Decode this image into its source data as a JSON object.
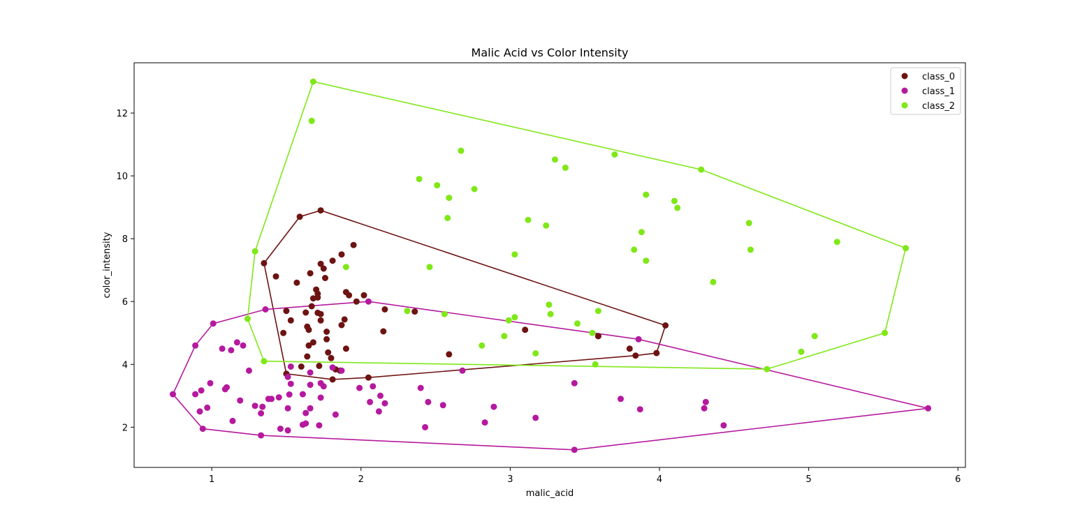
{
  "chart_data": {
    "type": "scatter",
    "title": "Malic Acid vs Color Intensity",
    "xlabel": "malic_acid",
    "ylabel": "color_intensity",
    "xlim": [
      0.48,
      6.05
    ],
    "ylim": [
      0.72,
      13.6
    ],
    "xticks": [
      1,
      2,
      3,
      4,
      5,
      6
    ],
    "yticks": [
      2,
      4,
      6,
      8,
      10,
      12
    ],
    "grid": false,
    "legend_position": "top-right",
    "series": [
      {
        "name": "class_0",
        "color": "#6d1312",
        "points": [
          [
            1.71,
            5.64
          ],
          [
            1.78,
            4.38
          ],
          [
            2.36,
            5.68
          ],
          [
            1.95,
            7.8
          ],
          [
            2.59,
            4.32
          ],
          [
            1.76,
            6.75
          ],
          [
            1.87,
            5.25
          ],
          [
            2.15,
            5.05
          ],
          [
            1.64,
            5.2
          ],
          [
            1.35,
            7.22
          ],
          [
            2.16,
            5.75
          ],
          [
            1.48,
            5.0
          ],
          [
            1.73,
            5.6
          ],
          [
            1.73,
            7.2
          ],
          [
            1.87,
            7.5
          ],
          [
            1.81,
            7.3
          ],
          [
            1.92,
            6.2
          ],
          [
            1.57,
            6.6
          ],
          [
            1.59,
            8.7
          ],
          [
            3.1,
            5.1
          ],
          [
            1.63,
            5.65
          ],
          [
            3.8,
            4.5
          ],
          [
            1.86,
            3.8
          ],
          [
            1.6,
            3.93
          ],
          [
            1.81,
            3.52
          ],
          [
            2.05,
            3.58
          ],
          [
            1.77,
            4.8
          ],
          [
            1.72,
            3.95
          ],
          [
            1.9,
            4.5
          ],
          [
            1.68,
            4.7
          ],
          [
            1.5,
            5.7
          ],
          [
            1.66,
            6.9
          ],
          [
            1.83,
            3.84
          ],
          [
            1.53,
            5.4
          ],
          [
            1.8,
            4.2
          ],
          [
            1.65,
            5.1
          ],
          [
            1.5,
            3.7
          ],
          [
            3.59,
            4.9
          ],
          [
            1.71,
            6.13
          ],
          [
            3.84,
            4.28
          ],
          [
            1.89,
            5.43
          ],
          [
            3.98,
            4.36
          ],
          [
            1.77,
            5.04
          ],
          [
            4.04,
            5.24
          ],
          [
            3.59,
            4.9
          ],
          [
            1.68,
            6.1
          ],
          [
            2.02,
            6.2
          ],
          [
            1.73,
            8.9
          ],
          [
            1.75,
            7.05
          ],
          [
            1.9,
            6.3
          ],
          [
            1.67,
            5.85
          ],
          [
            1.73,
            5.4
          ],
          [
            1.7,
            6.38
          ],
          [
            1.97,
            6.0
          ],
          [
            1.43,
            6.8
          ],
          [
            1.64,
            4.25
          ],
          [
            1.65,
            4.6
          ],
          [
            1.71,
            6.25
          ]
        ]
      },
      {
        "name": "class_1",
        "color": "#b5199e",
        "points": [
          [
            0.94,
            1.95
          ],
          [
            1.1,
            3.27
          ],
          [
            1.36,
            5.75
          ],
          [
            1.25,
            3.8
          ],
          [
            1.13,
            4.45
          ],
          [
            0.99,
            3.4
          ],
          [
            1.51,
            3.6
          ],
          [
            0.89,
            4.6
          ],
          [
            1.01,
            5.3
          ],
          [
            1.07,
            4.5
          ],
          [
            1.17,
            4.7
          ],
          [
            1.21,
            4.6
          ],
          [
            0.74,
            3.05
          ],
          [
            0.89,
            3.05
          ],
          [
            0.93,
            3.17
          ],
          [
            0.92,
            2.5
          ],
          [
            0.97,
            2.62
          ],
          [
            1.09,
            3.21
          ],
          [
            1.14,
            2.2
          ],
          [
            1.19,
            2.85
          ],
          [
            1.29,
            2.68
          ],
          [
            1.33,
            2.44
          ],
          [
            1.33,
            1.74
          ],
          [
            1.34,
            2.65
          ],
          [
            1.38,
            2.9
          ],
          [
            1.4,
            2.9
          ],
          [
            1.45,
            2.95
          ],
          [
            1.46,
            1.95
          ],
          [
            1.51,
            1.9
          ],
          [
            1.51,
            2.6
          ],
          [
            1.52,
            3.04
          ],
          [
            1.53,
            3.38
          ],
          [
            1.53,
            3.93
          ],
          [
            1.61,
            2.08
          ],
          [
            1.61,
            3.05
          ],
          [
            1.63,
            2.12
          ],
          [
            1.63,
            2.45
          ],
          [
            1.66,
            2.6
          ],
          [
            1.66,
            3.35
          ],
          [
            1.66,
            3.74
          ],
          [
            1.72,
            2.06
          ],
          [
            1.73,
            2.94
          ],
          [
            1.73,
            3.4
          ],
          [
            1.75,
            3.3
          ],
          [
            1.81,
            3.9
          ],
          [
            1.83,
            2.4
          ],
          [
            1.87,
            3.8
          ],
          [
            1.99,
            3.25
          ],
          [
            2.05,
            6.0
          ],
          [
            2.06,
            2.8
          ],
          [
            2.08,
            3.3
          ],
          [
            2.12,
            2.5
          ],
          [
            2.13,
            3.0
          ],
          [
            2.16,
            2.76
          ],
          [
            2.4,
            3.25
          ],
          [
            2.43,
            2.0
          ],
          [
            2.45,
            2.8
          ],
          [
            2.55,
            2.7
          ],
          [
            2.68,
            3.8
          ],
          [
            2.83,
            2.15
          ],
          [
            2.89,
            2.65
          ],
          [
            3.17,
            2.3
          ],
          [
            3.43,
            3.4
          ],
          [
            3.43,
            1.28
          ],
          [
            3.74,
            2.9
          ],
          [
            3.87,
            2.57
          ],
          [
            3.86,
            4.8
          ],
          [
            4.3,
            2.6
          ],
          [
            4.31,
            2.8
          ],
          [
            4.43,
            2.06
          ],
          [
            5.8,
            2.6
          ]
        ]
      },
      {
        "name": "class_2",
        "color": "#7fe817",
        "points": [
          [
            1.68,
            13.0
          ],
          [
            1.67,
            11.75
          ],
          [
            2.67,
            10.8
          ],
          [
            3.3,
            10.52
          ],
          [
            3.37,
            10.26
          ],
          [
            3.7,
            10.68
          ],
          [
            4.28,
            10.2
          ],
          [
            2.39,
            9.9
          ],
          [
            2.51,
            9.7
          ],
          [
            2.59,
            9.3
          ],
          [
            2.76,
            9.58
          ],
          [
            3.91,
            9.4
          ],
          [
            4.1,
            9.2
          ],
          [
            4.12,
            8.98
          ],
          [
            2.58,
            8.66
          ],
          [
            3.12,
            8.6
          ],
          [
            3.24,
            8.42
          ],
          [
            3.88,
            8.21
          ],
          [
            4.6,
            8.5
          ],
          [
            5.19,
            7.9
          ],
          [
            1.29,
            7.6
          ],
          [
            1.9,
            7.1
          ],
          [
            2.46,
            7.1
          ],
          [
            3.03,
            7.5
          ],
          [
            3.83,
            7.65
          ],
          [
            3.91,
            7.3
          ],
          [
            4.61,
            7.65
          ],
          [
            5.65,
            7.7
          ],
          [
            4.36,
            6.62
          ],
          [
            1.24,
            5.45
          ],
          [
            2.31,
            5.7
          ],
          [
            2.56,
            5.6
          ],
          [
            2.99,
            5.4
          ],
          [
            3.03,
            5.5
          ],
          [
            3.26,
            5.9
          ],
          [
            3.27,
            5.6
          ],
          [
            3.45,
            5.3
          ],
          [
            3.59,
            5.7
          ],
          [
            3.55,
            5.0
          ],
          [
            2.81,
            4.6
          ],
          [
            2.96,
            4.9
          ],
          [
            3.17,
            4.35
          ],
          [
            3.57,
            4.0
          ],
          [
            4.95,
            4.4
          ],
          [
            5.04,
            4.9
          ],
          [
            5.51,
            5.0
          ],
          [
            4.72,
            3.85
          ],
          [
            1.35,
            4.1
          ]
        ]
      }
    ],
    "hulls": [
      {
        "series": "class_0",
        "color": "#6d1312",
        "points": [
          [
            1.35,
            7.22
          ],
          [
            1.59,
            8.7
          ],
          [
            1.73,
            8.9
          ],
          [
            4.04,
            5.24
          ],
          [
            3.98,
            4.36
          ],
          [
            3.84,
            4.28
          ],
          [
            2.05,
            3.58
          ],
          [
            1.81,
            3.52
          ],
          [
            1.5,
            3.7
          ],
          [
            1.35,
            7.22
          ]
        ]
      },
      {
        "series": "class_1",
        "color": "#b5199e",
        "points": [
          [
            0.74,
            3.05
          ],
          [
            0.89,
            4.6
          ],
          [
            1.01,
            5.3
          ],
          [
            1.36,
            5.75
          ],
          [
            2.05,
            6.0
          ],
          [
            3.86,
            4.8
          ],
          [
            5.8,
            2.6
          ],
          [
            3.43,
            1.28
          ],
          [
            1.33,
            1.74
          ],
          [
            0.94,
            1.95
          ],
          [
            0.74,
            3.05
          ]
        ]
      },
      {
        "series": "class_2",
        "color": "#7fe817",
        "points": [
          [
            1.24,
            5.45
          ],
          [
            1.29,
            7.6
          ],
          [
            1.68,
            13.0
          ],
          [
            4.28,
            10.2
          ],
          [
            5.65,
            7.7
          ],
          [
            5.51,
            5.0
          ],
          [
            4.72,
            3.85
          ],
          [
            1.35,
            4.1
          ],
          [
            1.24,
            5.45
          ]
        ]
      }
    ]
  }
}
